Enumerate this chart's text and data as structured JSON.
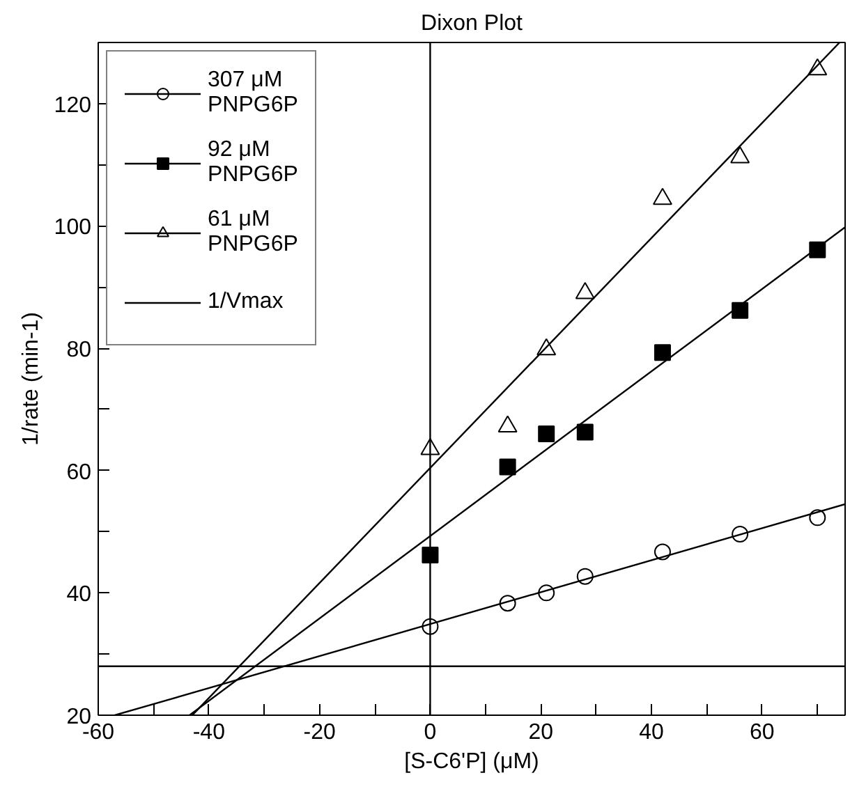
{
  "chart_data": {
    "type": "scatter",
    "title": "Dixon Plot",
    "xlabel": "[S-C6'P] (μM)",
    "ylabel": "1/rate (min-1)",
    "xlim": [
      -60,
      75
    ],
    "ylim": [
      20,
      130
    ],
    "xticks": [
      -60,
      {
        "value": -50,
        "label": null
      },
      -40,
      {
        "value": -30,
        "label": null
      },
      -20,
      {
        "value": -10,
        "label": null
      },
      0,
      {
        "value": 10,
        "label": null
      },
      20,
      {
        "value": 30,
        "label": null
      },
      40,
      {
        "value": 50,
        "label": null
      },
      60,
      {
        "value": 70,
        "label": null
      }
    ],
    "yticks": [
      20,
      {
        "value": 30,
        "label": null
      },
      40,
      {
        "value": 50,
        "label": null
      },
      60,
      {
        "value": 70,
        "label": null
      },
      80,
      {
        "value": 90,
        "label": null
      },
      100,
      {
        "value": 110,
        "label": null
      },
      120
    ],
    "grid": false,
    "legend": "top left",
    "x": [
      0,
      14,
      21,
      28,
      42,
      56,
      70
    ],
    "series": [
      {
        "name": "307 μM\nPNPG6P",
        "marker": "circle",
        "color": "#000000",
        "values": [
          34.5,
          38.3,
          40,
          42.7,
          46.7,
          49.6,
          52.3
        ]
      },
      {
        "type": "line",
        "color": "#000000",
        "x": [
          -57,
          75
        ],
        "values": [
          20,
          54.5
        ]
      },
      {
        "name": "92 μM\nPNPG6P",
        "marker": "square",
        "color": "#000000",
        "values": [
          46.2,
          60.6,
          66,
          66.3,
          79.3,
          86.2,
          96.1
        ]
      },
      {
        "type": "line",
        "color": "#000000",
        "x": [
          -43.5,
          75
        ],
        "values": [
          20,
          99.8
        ]
      },
      {
        "name": "61 μM\nPNPG6P",
        "marker": "triangle",
        "color": "#000000",
        "values": [
          63.5,
          67.2,
          79.8,
          89,
          104.4,
          111.2,
          125.6
        ]
      },
      {
        "type": "line",
        "color": "#000000",
        "x": [
          -43,
          74
        ],
        "values": [
          20,
          130
        ]
      },
      {
        "name": "1/Vmax",
        "type": "line",
        "color": "#000000",
        "x": [
          -60,
          75
        ],
        "values": [
          28,
          28
        ]
      }
    ],
    "ref_lines": [
      {
        "axis": "x",
        "value": 0,
        "color": "#000000"
      }
    ]
  }
}
